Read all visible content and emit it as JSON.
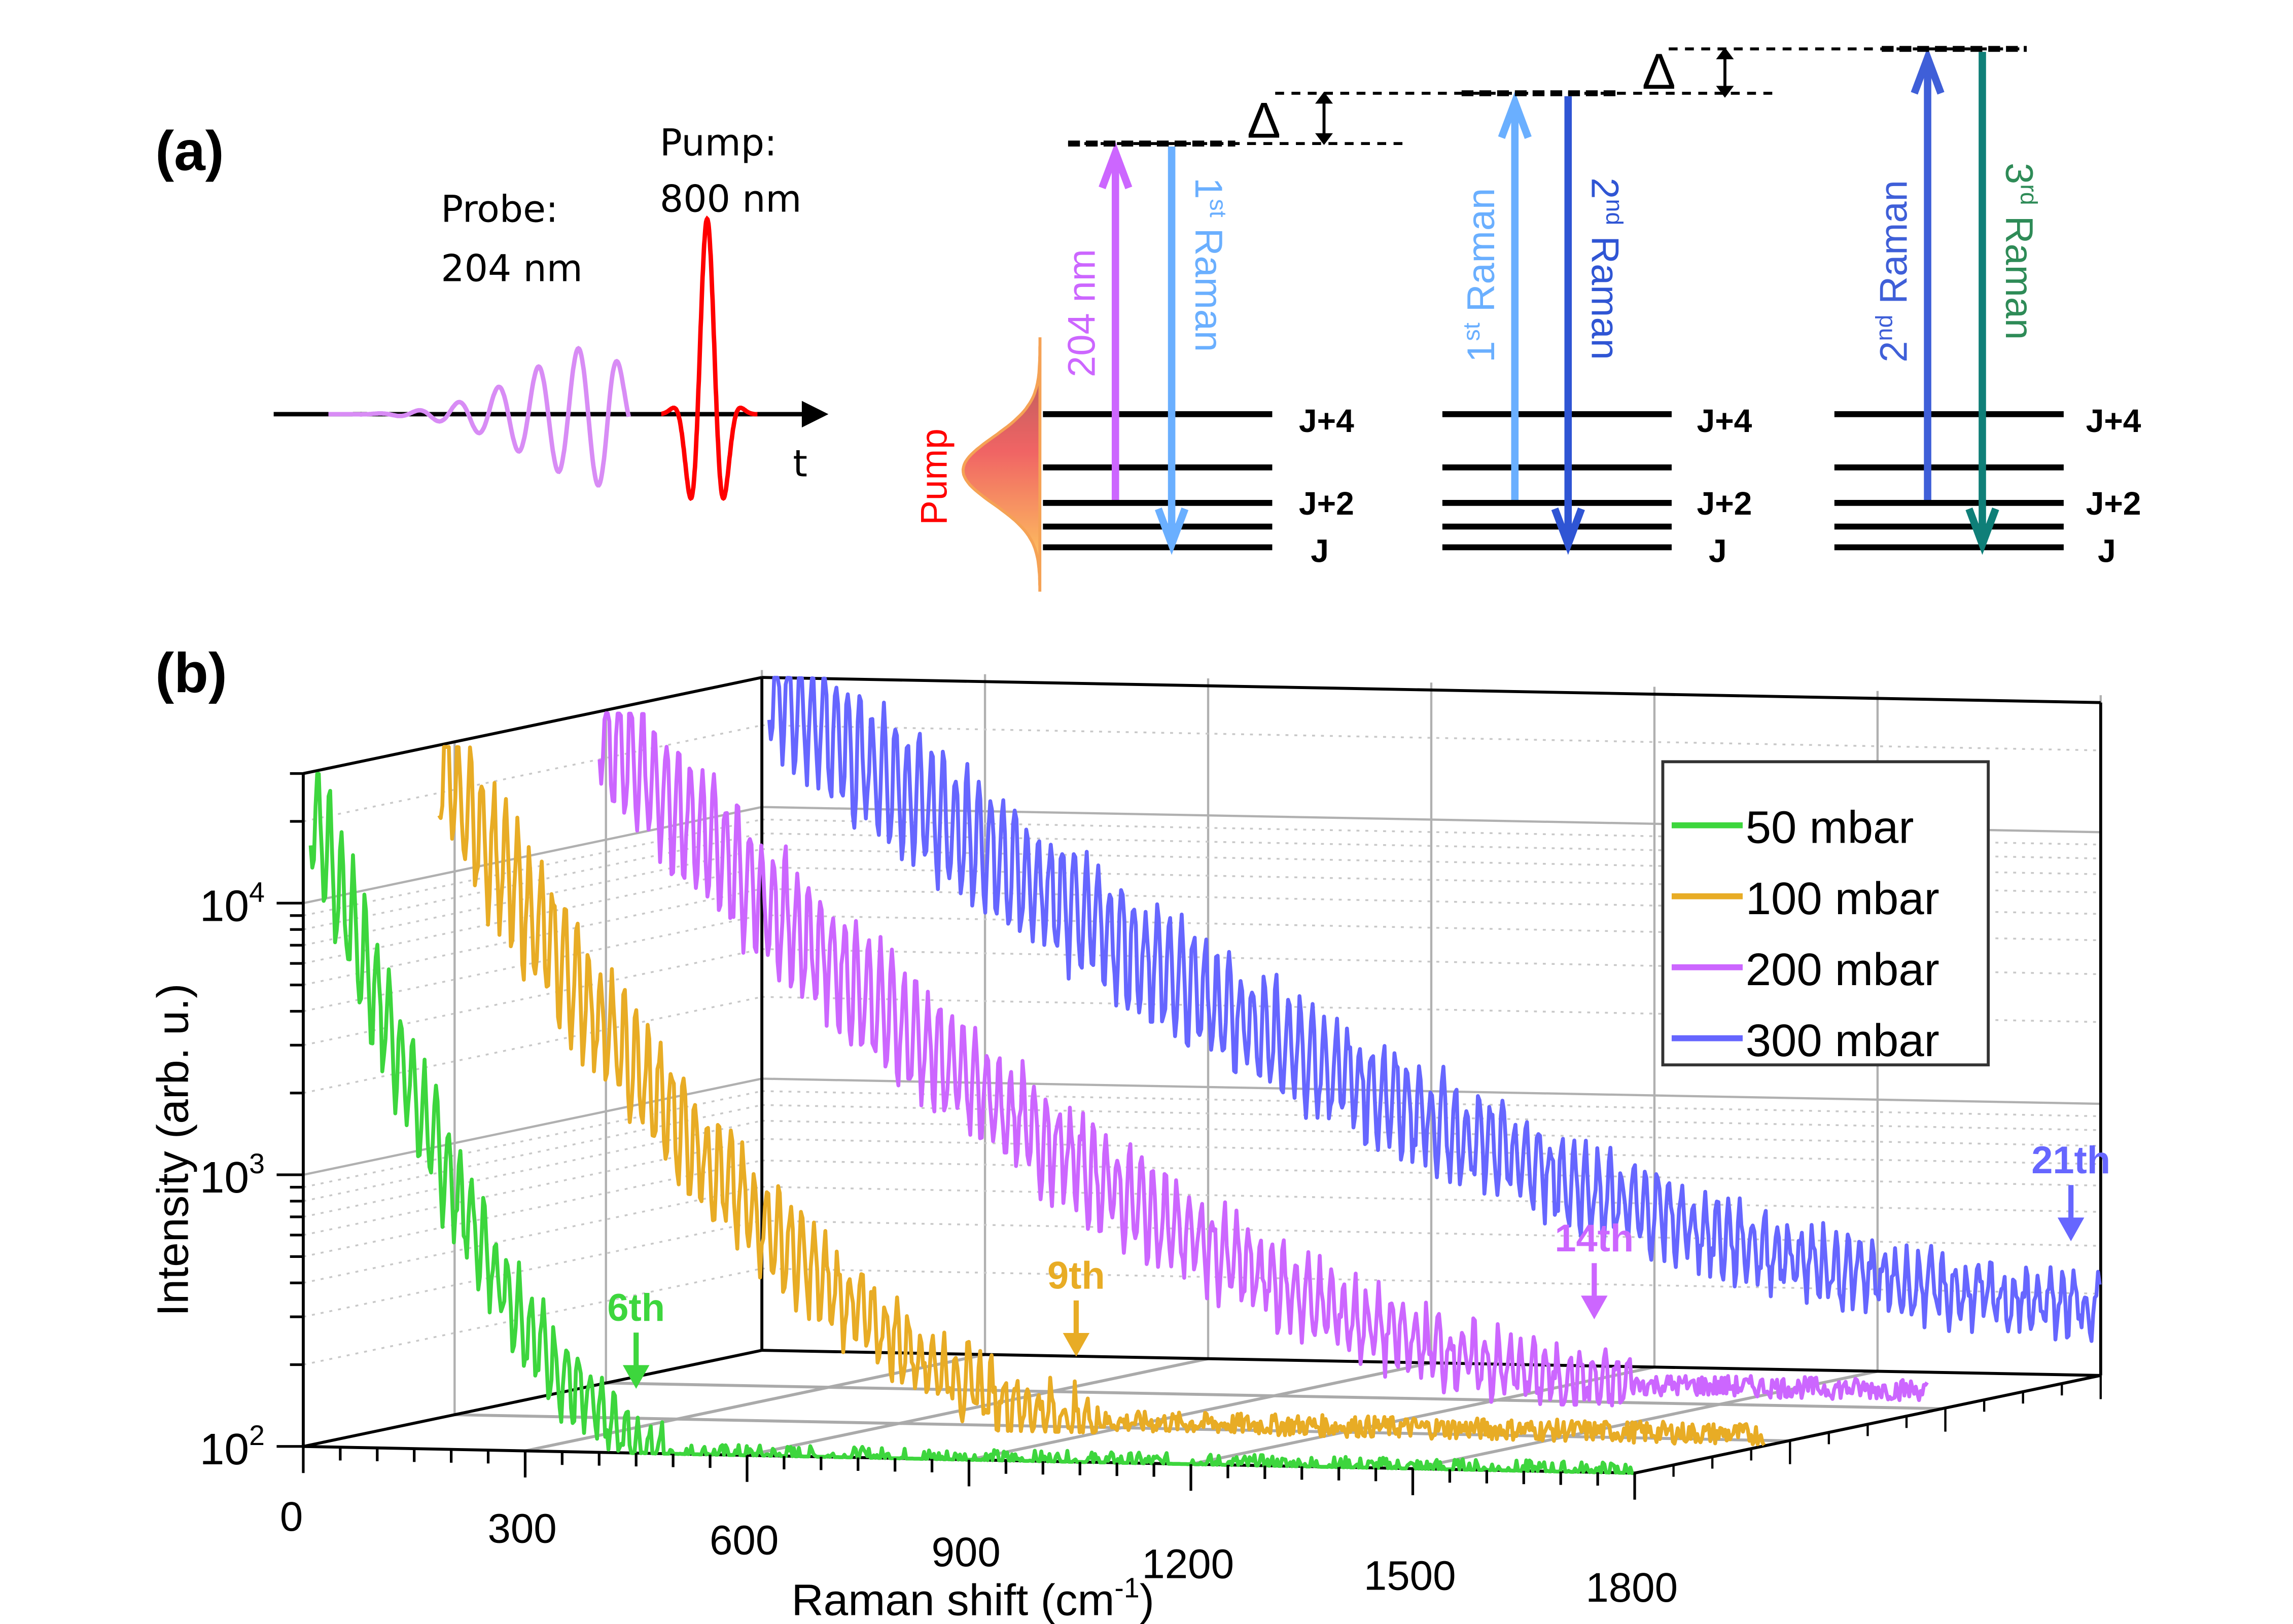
{
  "panel_a": {
    "label": "(a)",
    "probe_label_line1": "Probe:",
    "probe_label_line2": "204 nm",
    "pump_label_line1": "Pump:",
    "pump_label_line2": "800 nm",
    "time_axis_label": "t",
    "pump_profile_label": "Pump",
    "delta_symbol": "Δ",
    "colors": {
      "probe": "#d88cf5",
      "pump": "#ff0000",
      "pump_label": "#ff0000",
      "arrow_204": "#cc66ff",
      "raman1": "#6aafff",
      "raman2": "#2f55d4",
      "raman3": "#0f7f78",
      "raman3_text": "#2e8b57"
    },
    "diagrams": [
      {
        "up_label": "204 nm",
        "up_sup": "",
        "up_color": "#cc66ff",
        "down_label": "Raman",
        "down_prefix": "1",
        "down_sup": "st",
        "down_color": "#6aafff",
        "levels": [
          "J+4",
          "J+2",
          "J"
        ]
      },
      {
        "up_label": "Raman",
        "up_prefix": "1",
        "up_sup": "st",
        "up_color": "#6aafff",
        "down_label": "Raman",
        "down_prefix": "2",
        "down_sup": "nd",
        "down_color": "#2f55d4",
        "levels": [
          "J+4",
          "J+2",
          "J"
        ]
      },
      {
        "up_label": "Raman",
        "up_prefix": "2",
        "up_sup": "nd",
        "up_color": "#3f5fd8",
        "down_label": "Raman",
        "down_prefix": "3",
        "down_sup": "rd",
        "down_color": "#0f7f78",
        "levels": [
          "J+4",
          "J+2",
          "J"
        ]
      }
    ]
  },
  "panel_b": {
    "label": "(b)"
  },
  "chart_data": {
    "type": "line",
    "title": "",
    "xlabel": "Raman shift (cm-1)",
    "xlabel_main": "Raman shift (cm",
    "xlabel_sup": "-1",
    "xlabel_close": ")",
    "ylabel": "Intensity (arb. u.)",
    "yscale": "log",
    "xlim": [
      0,
      1800
    ],
    "ylim": [
      100,
      30000
    ],
    "x_ticks": [
      "0",
      "300",
      "600",
      "900",
      "1200",
      "1500",
      "1800"
    ],
    "y_ticks": [
      {
        "base": "10",
        "exp": "2",
        "value": 100
      },
      {
        "base": "10",
        "exp": "3",
        "value": 1000
      },
      {
        "base": "10",
        "exp": "4",
        "value": 10000
      }
    ],
    "grid": true,
    "legend_position": "top-right",
    "view": "3d-waterfall",
    "series": [
      {
        "name": "50 mbar",
        "color": "#3dd63d",
        "annotation": "6th",
        "annotation_x": 450,
        "peak_period_cm": 16,
        "start_intensity": 30000,
        "decay_to_baseline_x": 500,
        "baseline": 100
      },
      {
        "name": "100 mbar",
        "color": "#e8ac25",
        "annotation": "9th",
        "annotation_x": 870,
        "peak_period_cm": 16,
        "start_intensity": 30000,
        "decay_to_baseline_x": 900,
        "baseline": 110
      },
      {
        "name": "200 mbar",
        "color": "#cc66ff",
        "annotation": "14th",
        "annotation_x": 1350,
        "peak_period_cm": 16,
        "start_intensity": 30000,
        "decay_to_baseline_x": 1400,
        "baseline": 120
      },
      {
        "name": "300 mbar",
        "color": "#6666ff",
        "annotation": "21th",
        "annotation_x": 1760,
        "peak_period_cm": 16,
        "start_intensity": 30000,
        "decay_to_baseline_x": 1800,
        "baseline": 180
      }
    ]
  }
}
